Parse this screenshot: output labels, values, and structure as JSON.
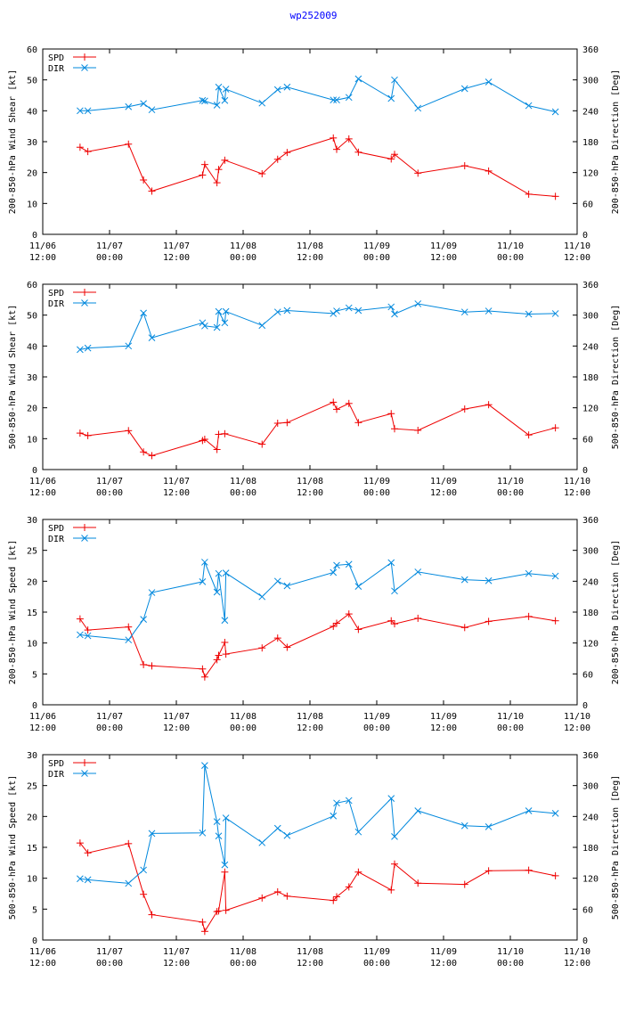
{
  "page": {
    "title": "wp252009"
  },
  "colors": {
    "spd": "#ee0000",
    "dir": "#0088dd",
    "axis": "#000000"
  },
  "x_axis": {
    "ticks": [
      0,
      12,
      24,
      36,
      48,
      60,
      72,
      84,
      96
    ],
    "labels": [
      [
        "11/06",
        "12:00"
      ],
      [
        "11/07",
        "00:00"
      ],
      [
        "11/07",
        "12:00"
      ],
      [
        "11/08",
        "00:00"
      ],
      [
        "11/08",
        "12:00"
      ],
      [
        "11/09",
        "00:00"
      ],
      [
        "11/09",
        "12:00"
      ],
      [
        "11/10",
        "00:00"
      ],
      [
        "11/10",
        "12:00"
      ]
    ],
    "unit_note": "hours since 11/06 12:00"
  },
  "chart_data": [
    {
      "type": "line",
      "ylabel_left": "200-850-hPa Wind Shear [kt]",
      "ylabel_right": "200-850-hPa Direction [Deg]",
      "ylim_left": [
        0,
        60
      ],
      "yticks_left": [
        0,
        10,
        20,
        30,
        40,
        50,
        60
      ],
      "ylim_right": [
        0,
        360
      ],
      "yticks_right": [
        0,
        60,
        120,
        180,
        240,
        300,
        360
      ],
      "legend": [
        "SPD",
        "DIR"
      ],
      "series": [
        {
          "name": "SPD",
          "axis": "left",
          "x": [
            6.7,
            8.1,
            15.4,
            18.1,
            19.6,
            28.7,
            29.1,
            31.3,
            31.6,
            32.7,
            39.4,
            42.2,
            43.9,
            52.2,
            52.8,
            55.0,
            56.7,
            62.6,
            63.2,
            67.4,
            75.8,
            80.1,
            87.3,
            92.1
          ],
          "values": [
            28.2,
            26.8,
            29.2,
            17.6,
            14.0,
            19.2,
            22.6,
            16.7,
            21.0,
            24.0,
            19.6,
            24.3,
            26.5,
            31.2,
            27.5,
            30.9,
            26.6,
            24.4,
            25.9,
            19.8,
            22.2,
            20.5,
            13.0,
            12.3
          ]
        },
        {
          "name": "DIR",
          "axis": "right",
          "x": [
            6.7,
            8.1,
            15.4,
            18.1,
            19.6,
            28.7,
            29.1,
            31.3,
            31.6,
            32.7,
            32.9,
            39.4,
            42.2,
            43.9,
            52.2,
            52.8,
            55.0,
            56.7,
            62.6,
            63.2,
            67.4,
            75.8,
            80.1,
            87.3,
            92.1
          ],
          "values": [
            240,
            240,
            248,
            254,
            242,
            260,
            259,
            251,
            286,
            260,
            282,
            255,
            281,
            286,
            261,
            261,
            266,
            302,
            264,
            300,
            245,
            283,
            296,
            250,
            238
          ]
        }
      ]
    },
    {
      "type": "line",
      "ylabel_left": "500-850-hPa Wind Shear [kt]",
      "ylabel_right": "500-850-hPa Direction [Deg]",
      "ylim_left": [
        0,
        60
      ],
      "yticks_left": [
        0,
        10,
        20,
        30,
        40,
        50,
        60
      ],
      "ylim_right": [
        0,
        360
      ],
      "yticks_right": [
        0,
        60,
        120,
        180,
        240,
        300,
        360
      ],
      "legend": [
        "SPD",
        "DIR"
      ],
      "series": [
        {
          "name": "SPD",
          "axis": "left",
          "x": [
            6.7,
            8.1,
            15.4,
            18.1,
            19.6,
            28.7,
            29.1,
            31.3,
            31.6,
            32.7,
            39.4,
            42.2,
            43.9,
            52.2,
            52.8,
            55.0,
            56.7,
            62.6,
            63.2,
            67.4,
            75.8,
            80.1,
            87.3,
            92.1
          ],
          "values": [
            11.8,
            11.0,
            12.6,
            5.7,
            4.5,
            9.4,
            9.8,
            6.5,
            11.4,
            11.6,
            8.2,
            15.0,
            15.2,
            21.8,
            19.5,
            21.4,
            15.2,
            18.1,
            13.2,
            12.7,
            19.6,
            21.0,
            11.2,
            13.5
          ]
        },
        {
          "name": "DIR",
          "axis": "right",
          "x": [
            6.7,
            8.1,
            15.4,
            18.1,
            19.6,
            28.7,
            29.1,
            31.3,
            31.6,
            32.7,
            32.9,
            39.4,
            42.2,
            43.9,
            52.2,
            52.8,
            55.0,
            56.7,
            62.6,
            63.2,
            67.4,
            75.8,
            80.1,
            87.3,
            92.1
          ],
          "values": [
            233,
            236,
            240,
            304,
            256,
            285,
            279,
            276,
            307,
            285,
            307,
            280,
            306,
            309,
            303,
            308,
            314,
            309,
            316,
            302,
            322,
            306,
            308,
            302,
            303
          ]
        }
      ]
    },
    {
      "type": "line",
      "ylabel_left": "200-850-hPa Wind Speed [kt]",
      "ylabel_right": "200-850-hPa Direction [Deg]",
      "ylim_left": [
        0,
        30
      ],
      "yticks_left": [
        0,
        5,
        10,
        15,
        20,
        25,
        30
      ],
      "ylim_right": [
        0,
        360
      ],
      "yticks_right": [
        0,
        60,
        120,
        180,
        240,
        300,
        360
      ],
      "legend": [
        "SPD",
        "DIR"
      ],
      "series": [
        {
          "name": "SPD",
          "axis": "left",
          "x": [
            6.7,
            8.1,
            15.4,
            18.1,
            19.6,
            28.7,
            29.1,
            31.3,
            31.6,
            32.7,
            32.9,
            39.4,
            42.2,
            43.9,
            52.2,
            52.8,
            55.0,
            56.7,
            62.6,
            63.2,
            67.4,
            75.8,
            80.1,
            87.3,
            92.1
          ],
          "values": [
            13.9,
            12.1,
            12.6,
            6.5,
            6.3,
            5.8,
            4.5,
            7.3,
            8.0,
            10.1,
            8.2,
            9.2,
            10.8,
            9.3,
            12.7,
            13.2,
            14.7,
            12.2,
            13.6,
            13.1,
            14.0,
            12.5,
            13.5,
            14.3,
            13.6
          ]
        },
        {
          "name": "DIR",
          "axis": "right",
          "x": [
            6.7,
            8.1,
            15.4,
            18.1,
            19.6,
            28.7,
            29.1,
            31.3,
            31.6,
            32.7,
            32.9,
            39.4,
            42.2,
            43.9,
            52.2,
            52.8,
            55.0,
            56.7,
            62.6,
            63.2,
            67.4,
            75.8,
            80.1,
            87.3,
            92.1
          ],
          "values": [
            136,
            134,
            126,
            166,
            218,
            239,
            277,
            219,
            255,
            164,
            256,
            210,
            240,
            231,
            257,
            271,
            273,
            230,
            276,
            221,
            258,
            243,
            241,
            255,
            250
          ]
        }
      ]
    },
    {
      "type": "line",
      "ylabel_left": "500-850-hPa Wind Speed [kt]",
      "ylabel_right": "500-850-hPa Direction [Deg]",
      "ylim_left": [
        0,
        30
      ],
      "yticks_left": [
        0,
        5,
        10,
        15,
        20,
        25,
        30
      ],
      "ylim_right": [
        0,
        360
      ],
      "yticks_right": [
        0,
        60,
        120,
        180,
        240,
        300,
        360
      ],
      "legend": [
        "SPD",
        "DIR"
      ],
      "series": [
        {
          "name": "SPD",
          "axis": "left",
          "x": [
            6.7,
            8.1,
            15.4,
            18.1,
            19.6,
            28.7,
            29.1,
            31.3,
            31.6,
            32.7,
            32.9,
            39.4,
            42.2,
            43.9,
            52.2,
            52.8,
            55.0,
            56.7,
            62.6,
            63.2,
            67.4,
            75.8,
            80.1,
            87.3,
            92.1
          ],
          "values": [
            15.7,
            14.1,
            15.6,
            7.4,
            4.1,
            2.9,
            1.4,
            4.6,
            4.7,
            11.0,
            4.8,
            6.8,
            7.8,
            7.1,
            6.4,
            7.0,
            8.6,
            11.0,
            8.1,
            12.3,
            9.2,
            9.0,
            11.2,
            11.3,
            10.4
          ]
        },
        {
          "name": "DIR",
          "axis": "right",
          "x": [
            6.7,
            8.1,
            15.4,
            18.1,
            19.6,
            28.7,
            29.1,
            31.3,
            31.6,
            32.7,
            32.9,
            39.4,
            42.2,
            43.9,
            52.2,
            52.8,
            55.0,
            56.7,
            62.6,
            63.2,
            67.4,
            75.8,
            80.1,
            87.3,
            92.1
          ],
          "values": [
            119,
            117,
            110,
            136,
            207,
            208,
            339,
            230,
            202,
            146,
            237,
            189,
            217,
            203,
            241,
            266,
            271,
            210,
            275,
            201,
            251,
            222,
            220,
            251,
            246
          ]
        }
      ]
    }
  ]
}
